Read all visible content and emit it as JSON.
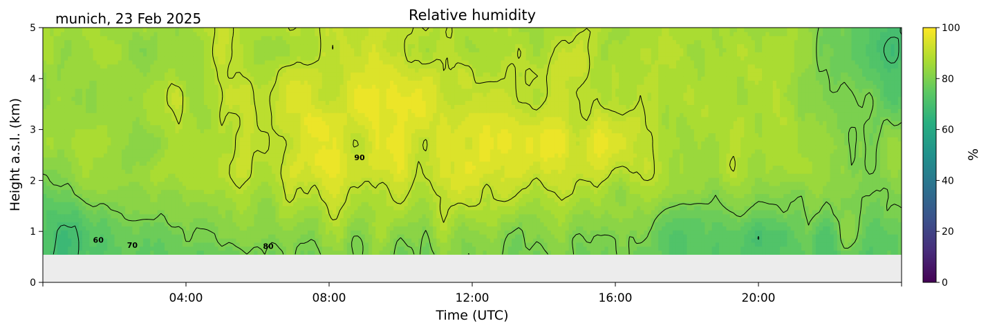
{
  "header": {
    "location_date": "munich, 23 Feb 2025"
  },
  "chart_data": {
    "type": "heatmap",
    "title": "Relative humidity",
    "xlabel": "Time (UTC)",
    "ylabel": "Height a.s.l. (km)",
    "xlim": [
      0,
      24
    ],
    "ylim": [
      0,
      5
    ],
    "x_ticks": [
      {
        "value": 4,
        "label": "04:00"
      },
      {
        "value": 8,
        "label": "08:00"
      },
      {
        "value": 12,
        "label": "12:00"
      },
      {
        "value": 16,
        "label": "16:00"
      },
      {
        "value": 20,
        "label": "20:00"
      }
    ],
    "y_ticks": [
      {
        "value": 0,
        "label": "0"
      },
      {
        "value": 1,
        "label": "1"
      },
      {
        "value": 2,
        "label": "2"
      },
      {
        "value": 3,
        "label": "3"
      },
      {
        "value": 4,
        "label": "4"
      },
      {
        "value": 5,
        "label": "5"
      }
    ],
    "data_bottom_km": 0.55,
    "colormap": "viridis",
    "colorbar": {
      "label": "%",
      "range": [
        0,
        100
      ],
      "ticks": [
        {
          "value": 0,
          "label": "0"
        },
        {
          "value": 20,
          "label": "20"
        },
        {
          "value": 40,
          "label": "40"
        },
        {
          "value": 60,
          "label": "60"
        },
        {
          "value": 80,
          "label": "80"
        },
        {
          "value": 100,
          "label": "100"
        }
      ]
    },
    "contour_levels": [
      60,
      70,
      80,
      90
    ],
    "contour_labels": [
      {
        "level": "60",
        "x": 1.55,
        "y": 0.78
      },
      {
        "level": "70",
        "x": 2.5,
        "y": 0.68
      },
      {
        "level": "80",
        "x": 6.3,
        "y": 0.66
      },
      {
        "level": "90",
        "x": 8.85,
        "y": 2.4
      }
    ],
    "missing_color": "#ececec"
  }
}
